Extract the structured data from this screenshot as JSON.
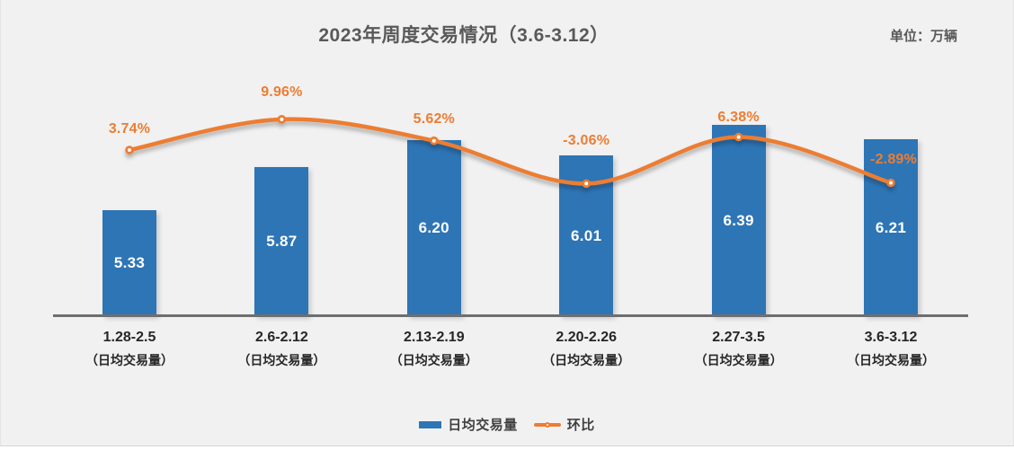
{
  "chart_data": {
    "type": "bar+line",
    "title": "2023年周度交易情况（3.6-3.12）",
    "unit_label": "单位：万辆",
    "categories": [
      "1.28-2.5",
      "2.6-2.12",
      "2.13-2.19",
      "2.20-2.26",
      "2.27-3.5",
      "3.6-3.12"
    ],
    "category_sub_label": "（日均交易量）",
    "series": [
      {
        "name": "日均交易量",
        "type": "bar",
        "values": [
          5.33,
          5.87,
          6.2,
          6.01,
          6.39,
          6.21
        ],
        "value_labels": [
          "5.33",
          "5.87",
          "6.20",
          "6.01",
          "6.39",
          "6.21"
        ],
        "color": "#2e75b6"
      },
      {
        "name": "环比",
        "type": "line",
        "values": [
          3.74,
          9.96,
          5.62,
          -3.06,
          6.38,
          -2.89
        ],
        "value_labels": [
          "3.74%",
          "9.96%",
          "5.62%",
          "-3.06%",
          "6.38%",
          "-2.89%"
        ],
        "color": "#ed7d31",
        "marker": "circle-white-fill"
      }
    ],
    "layout_hints": {
      "bar_axis_min_implied": 4.0,
      "secondary_axis": "percent",
      "gridlines": false,
      "legend_position": "bottom-center",
      "value_labels_position": {
        "bar": "inside-center",
        "line": "above"
      },
      "line_smoothing": true
    },
    "colors": {
      "background": "#f1f1f2",
      "bar": "#2e75b6",
      "line": "#ed7d31",
      "axis": "#6e6e6e",
      "title_text": "#595959",
      "category_text": "#262626",
      "bar_label_text": "#ffffff"
    }
  }
}
